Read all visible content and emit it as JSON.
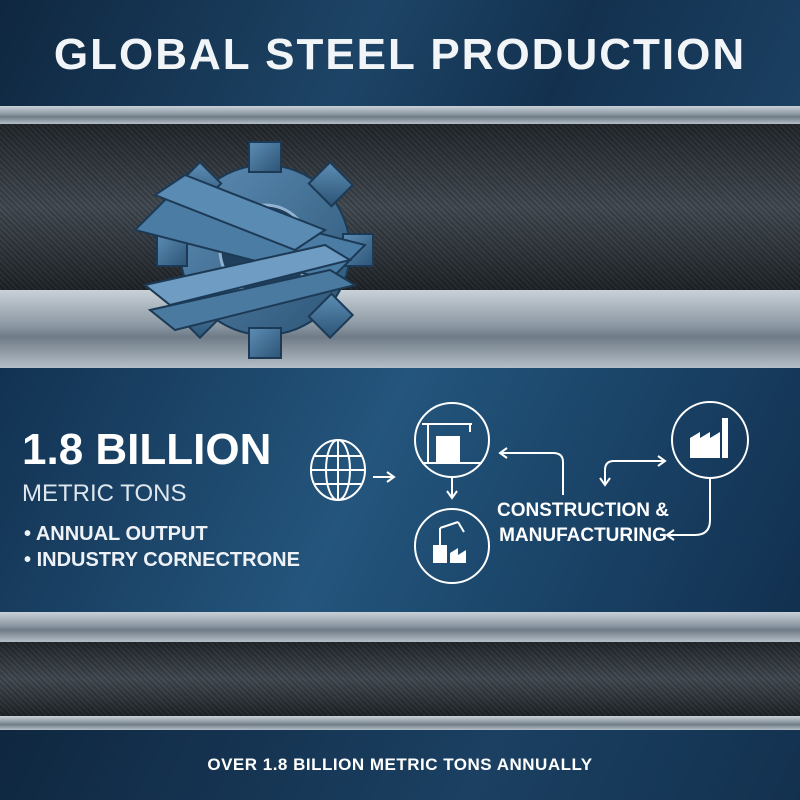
{
  "header": {
    "title": "GLOBAL STEEL PRODUCTION"
  },
  "stats": {
    "headline": "1.8 BILLION",
    "unit": "METRIC TONS",
    "bullets": [
      "ANNUAL OUTPUT",
      "INDUSTRY CORNECTRONE"
    ]
  },
  "diagram": {
    "label_line1": "CONSTRUCTION &",
    "label_line2": "MANUFACTURING",
    "icons": [
      "globe-icon",
      "construction-crane-icon",
      "robot-arm-factory-icon",
      "factory-icon",
      "steel-gear-icon"
    ]
  },
  "footer": {
    "text": "OVER 1.8 BILLION METRIC TONS ANNUALLY"
  },
  "colors": {
    "navy": "#123252",
    "steel": "#8c98a3",
    "gear": "#3f6e94"
  }
}
